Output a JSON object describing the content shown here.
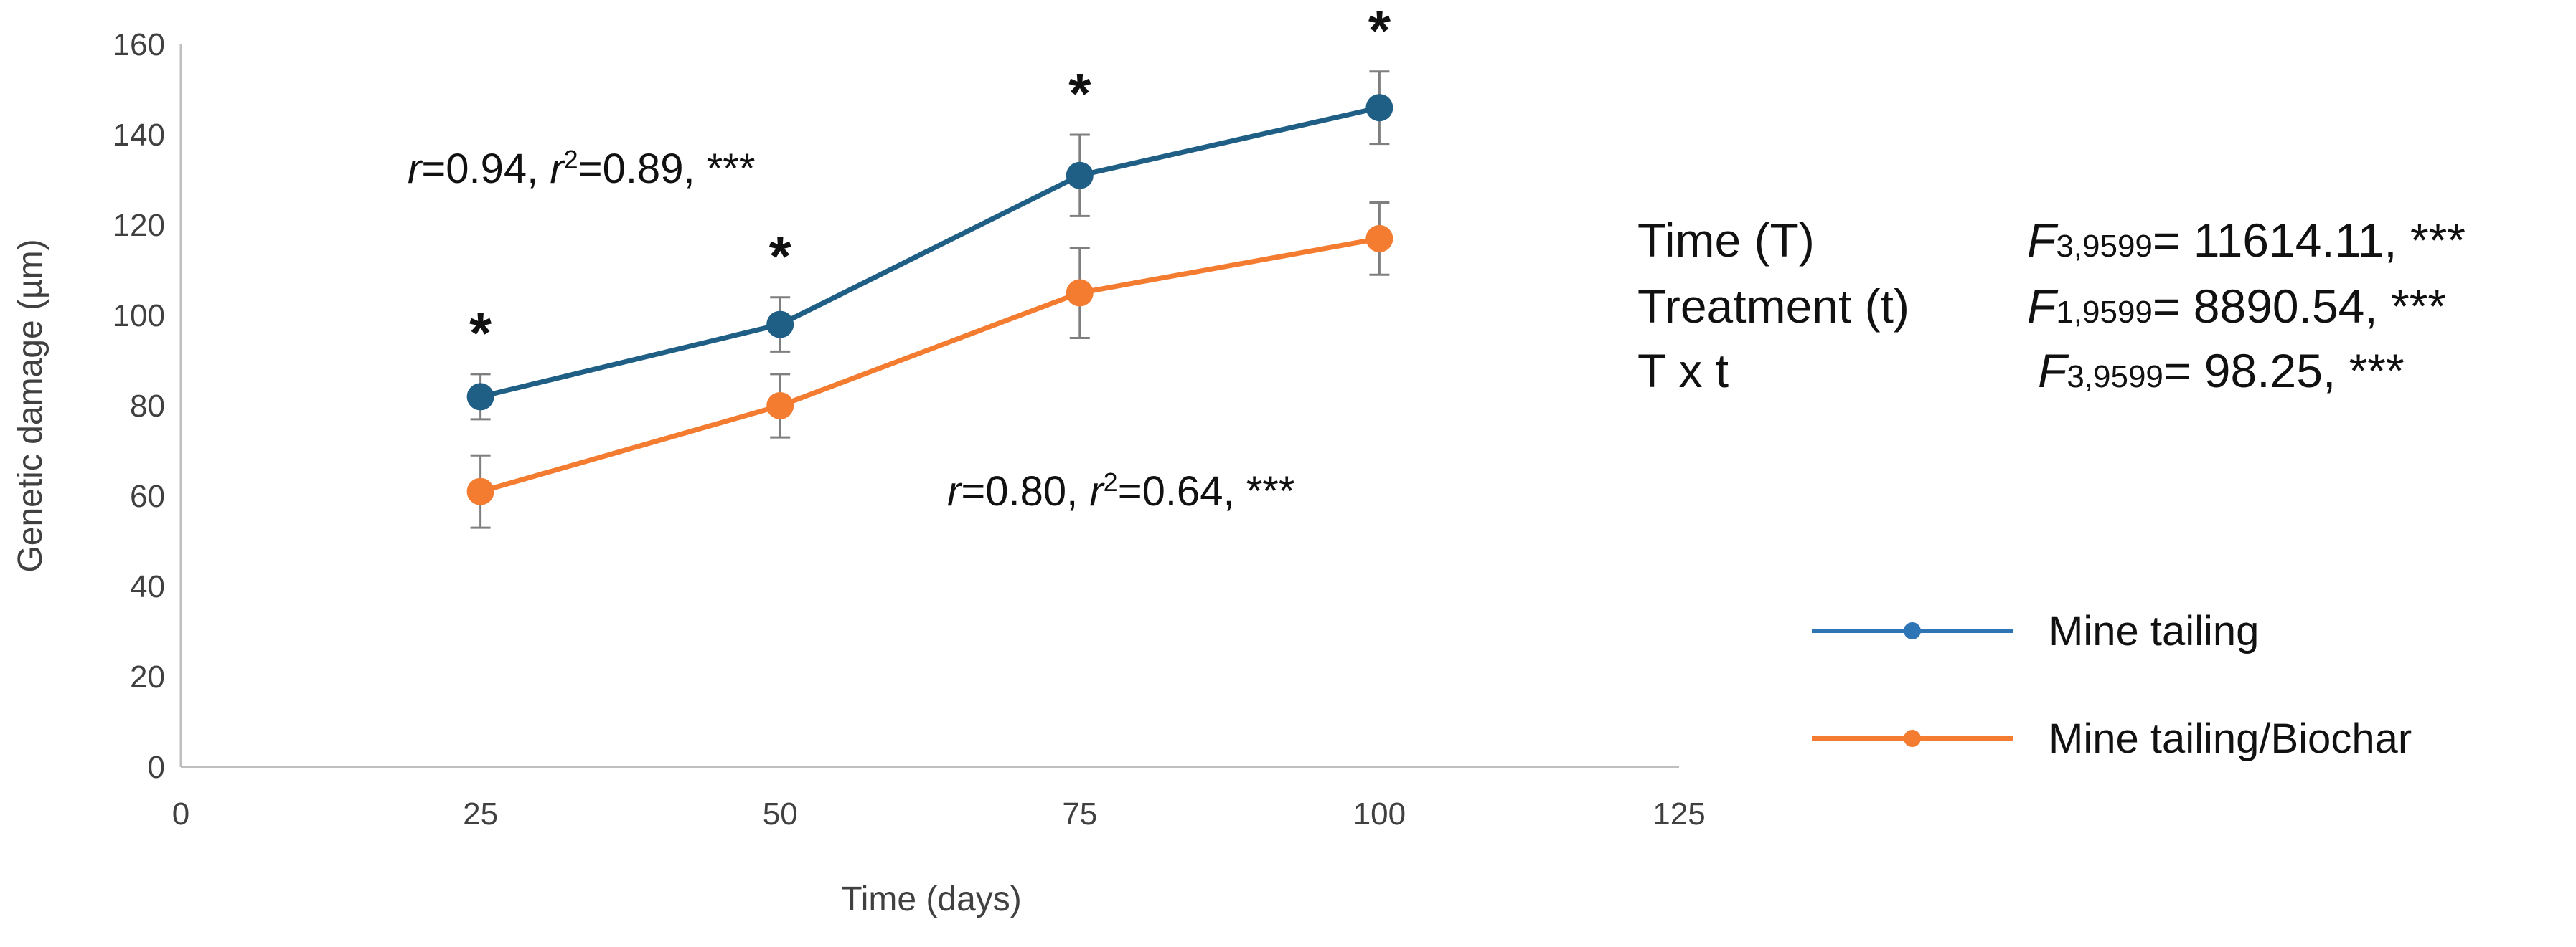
{
  "chart_data": {
    "type": "line",
    "xlabel": "Time (days)",
    "ylabel": "Genetic damage (µm)",
    "xlim": [
      0,
      125
    ],
    "ylim": [
      0,
      160
    ],
    "xticks": [
      "0",
      "25",
      "50",
      "75",
      "100",
      "125"
    ],
    "yticks": [
      "0",
      "20",
      "40",
      "60",
      "80",
      "100",
      "120",
      "140",
      "160"
    ],
    "x": [
      25,
      50,
      75,
      100
    ],
    "series": [
      {
        "name": "Mine tailing",
        "color": "#1f5f86",
        "legend_color": "#2e75b6",
        "values": [
          82,
          98,
          131,
          146
        ],
        "errors": [
          5,
          6,
          9,
          8
        ]
      },
      {
        "name": "Mine tailing/Biochar",
        "color": "#f47c30",
        "legend_color": "#f47c30",
        "values": [
          61,
          80,
          105,
          117
        ],
        "errors": [
          8,
          7,
          10,
          8
        ]
      }
    ],
    "significance": {
      "symbol": "*",
      "x": [
        25,
        50,
        75,
        100
      ]
    },
    "annotations": [
      {
        "r": "0.94",
        "r2": "0.89",
        "sig": "***"
      },
      {
        "r": "0.80",
        "r2": "0.64",
        "sig": "***"
      }
    ],
    "stats_table": [
      {
        "effect": "Time (T)",
        "F_sub": "3,9599",
        "value": "= 11614.11, ***"
      },
      {
        "effect": "Treatment (t)",
        "F_sub": "1,9599",
        "value": "= 8890.54, ***"
      },
      {
        "effect": "T x t",
        "F_sub": "3,9599",
        "value": "= 98.25, ***"
      }
    ],
    "grid": false,
    "legend_position": "right"
  }
}
